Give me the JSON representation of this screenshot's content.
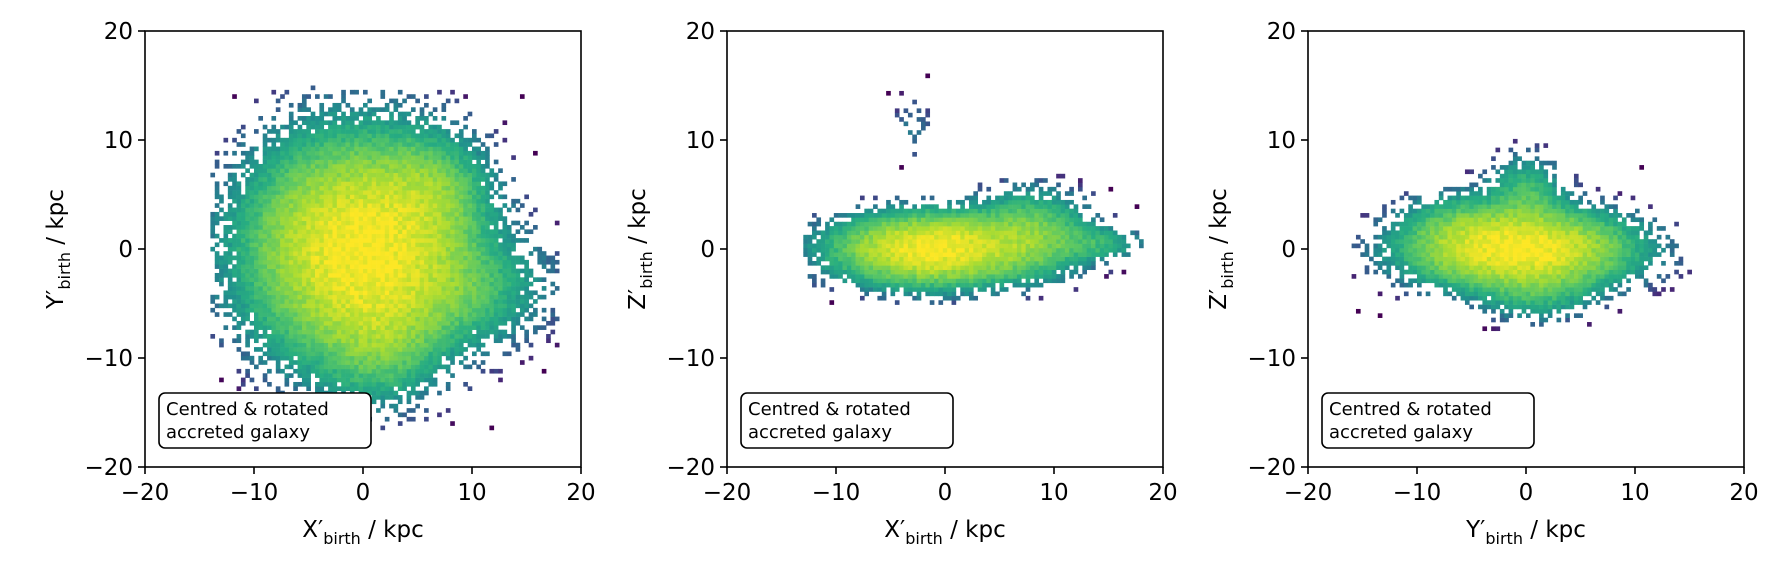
{
  "chart_data": [
    {
      "type": "heatmap",
      "xlabel": "X′birth / kpc",
      "ylabel": "Y′birth / kpc",
      "xlabel_main": "X′",
      "xlabel_sub": "birth",
      "xlabel_unit": " / kpc",
      "ylabel_main": "Y′",
      "ylabel_sub": "birth",
      "ylabel_unit": " / kpc",
      "xlim": [
        -20,
        20
      ],
      "ylim": [
        -20,
        20
      ],
      "xticks": [
        "−20",
        "−10",
        "0",
        "10",
        "20"
      ],
      "yticks": [
        "−20",
        "−10",
        "0",
        "10",
        "20"
      ],
      "annotation_line1": "Centred & rotated",
      "annotation_line2": "accreted galaxy",
      "colormap": "viridis",
      "density_model": {
        "core": {
          "cx": -0.5,
          "cy": 0.0,
          "sx": 5.5,
          "sy": 5.5
        },
        "lobes": [
          {
            "cx": 6.0,
            "cy": 5.0,
            "sx": 3.0,
            "sy": 3.0,
            "w": 0.25
          },
          {
            "cx": 8.0,
            "cy": -3.5,
            "sx": 5.0,
            "sy": 3.0,
            "w": 0.2
          },
          {
            "cx": 1.5,
            "cy": -8.5,
            "sx": 3.0,
            "sy": 3.0,
            "w": 0.2
          }
        ],
        "extent": {
          "xmin": -14,
          "xmax": 18,
          "ymin": -17,
          "ymax": 15
        }
      }
    },
    {
      "type": "heatmap",
      "xlabel": "X′birth / kpc",
      "ylabel": "Z′birth / kpc",
      "xlabel_main": "X′",
      "xlabel_sub": "birth",
      "xlabel_unit": " / kpc",
      "ylabel_main": "Z′",
      "ylabel_sub": "birth",
      "ylabel_unit": " / kpc",
      "xlim": [
        -20,
        20
      ],
      "ylim": [
        -20,
        20
      ],
      "xticks": [
        "−20",
        "−10",
        "0",
        "10",
        "20"
      ],
      "yticks": [
        "−20",
        "−10",
        "0",
        "10",
        "20"
      ],
      "annotation_line1": "Centred & rotated",
      "annotation_line2": "accreted galaxy",
      "colormap": "viridis",
      "density_model": {
        "core": {
          "cx": -1.0,
          "cy": 0.0,
          "sx": 5.0,
          "sy": 1.8
        },
        "lobes": [
          {
            "cx": 8.0,
            "cy": 1.5,
            "sx": 3.0,
            "sy": 2.2,
            "w": 0.3
          },
          {
            "cx": 14.0,
            "cy": 0.5,
            "sx": 2.5,
            "sy": 1.0,
            "w": 0.15
          },
          {
            "cx": -3.0,
            "cy": 11.0,
            "sx": 1.2,
            "sy": 2.0,
            "w": 0.04
          }
        ],
        "extent": {
          "xmin": -13,
          "xmax": 18,
          "ymin": -7.5,
          "ymax": 16
        }
      }
    },
    {
      "type": "heatmap",
      "xlabel": "Y′birth / kpc",
      "ylabel": "Z′birth / kpc",
      "xlabel_main": "Y′",
      "xlabel_sub": "birth",
      "xlabel_unit": " / kpc",
      "ylabel_main": "Z′",
      "ylabel_sub": "birth",
      "ylabel_unit": " / kpc",
      "xlim": [
        -20,
        20
      ],
      "ylim": [
        -20,
        20
      ],
      "xticks": [
        "−20",
        "−10",
        "0",
        "10",
        "20"
      ],
      "yticks": [
        "−20",
        "−10",
        "0",
        "10",
        "20"
      ],
      "annotation_line1": "Centred & rotated",
      "annotation_line2": "accreted galaxy",
      "colormap": "viridis",
      "density_model": {
        "core": {
          "cx": -0.5,
          "cy": 0.0,
          "sx": 5.5,
          "sy": 2.0
        },
        "lobes": [
          {
            "cx": 0.0,
            "cy": 5.0,
            "sx": 2.0,
            "sy": 2.0,
            "w": 0.2
          },
          {
            "cx": -6.0,
            "cy": 2.0,
            "sx": 3.0,
            "sy": 2.0,
            "w": 0.15
          },
          {
            "cx": 1.0,
            "cy": -4.0,
            "sx": 3.0,
            "sy": 1.5,
            "w": 0.15
          }
        ],
        "extent": {
          "xmin": -16,
          "xmax": 15,
          "ymin": -7.5,
          "ymax": 16
        }
      }
    }
  ]
}
